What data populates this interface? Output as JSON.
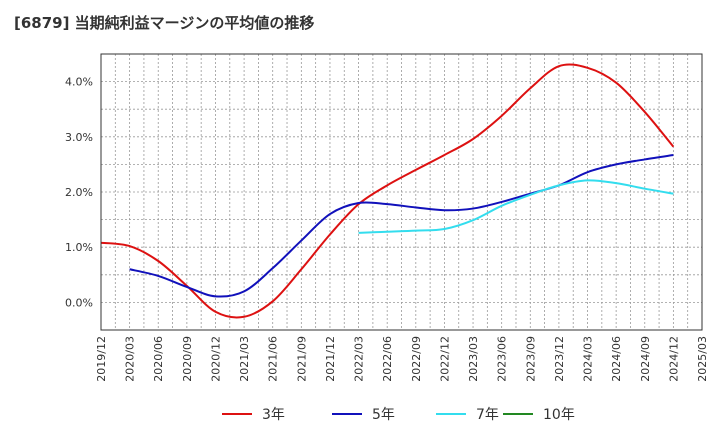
{
  "chart_data": {
    "type": "line",
    "title": "[6879]  当期純利益マージンの平均値の推移",
    "x_categories": [
      "2019/12",
      "2020/03",
      "2020/06",
      "2020/09",
      "2020/12",
      "2021/03",
      "2021/06",
      "2021/09",
      "2021/12",
      "2022/03",
      "2022/06",
      "2022/09",
      "2022/12",
      "2023/03",
      "2023/06",
      "2023/09",
      "2023/12",
      "2024/03",
      "2024/06",
      "2024/09",
      "2024/12",
      "2025/03"
    ],
    "y_ticks": [
      "0.0%",
      "1.0%",
      "2.0%",
      "3.0%",
      "4.0%"
    ],
    "ylim": [
      -0.5,
      4.5
    ],
    "grid": true,
    "legend_position": "bottom",
    "series": [
      {
        "name": "3年",
        "color": "#dd1111",
        "x": [
          "2019/12",
          "2020/03",
          "2020/06",
          "2020/09",
          "2020/12",
          "2021/03",
          "2021/06",
          "2021/09",
          "2021/12",
          "2022/03",
          "2022/06",
          "2022/09",
          "2022/12",
          "2023/03",
          "2023/06",
          "2023/09",
          "2023/12",
          "2024/03",
          "2024/06",
          "2024/09",
          "2024/12"
        ],
        "values": [
          1.08,
          1.02,
          0.75,
          0.3,
          -0.17,
          -0.26,
          0.02,
          0.6,
          1.23,
          1.78,
          2.12,
          2.4,
          2.67,
          2.96,
          3.38,
          3.88,
          4.28,
          4.25,
          3.98,
          3.45,
          2.82
        ]
      },
      {
        "name": "5年",
        "color": "#1111bb",
        "x": [
          "2020/03",
          "2020/06",
          "2020/09",
          "2020/12",
          "2021/03",
          "2021/06",
          "2021/09",
          "2021/12",
          "2022/03",
          "2022/06",
          "2022/09",
          "2022/12",
          "2023/03",
          "2023/06",
          "2023/09",
          "2023/12",
          "2024/03",
          "2024/06",
          "2024/09",
          "2024/12"
        ],
        "values": [
          0.6,
          0.48,
          0.28,
          0.11,
          0.2,
          0.62,
          1.12,
          1.6,
          1.8,
          1.78,
          1.72,
          1.67,
          1.7,
          1.82,
          1.97,
          2.12,
          2.36,
          2.5,
          2.59,
          2.67
        ]
      },
      {
        "name": "7年",
        "color": "#33ddee",
        "x": [
          "2022/03",
          "2022/06",
          "2022/09",
          "2022/12",
          "2023/03",
          "2023/06",
          "2023/09",
          "2023/12",
          "2024/03",
          "2024/06",
          "2024/09",
          "2024/12"
        ],
        "values": [
          1.26,
          1.28,
          1.3,
          1.33,
          1.49,
          1.75,
          1.95,
          2.12,
          2.21,
          2.16,
          2.06,
          1.97
        ]
      },
      {
        "name": "10年",
        "color": "#228822",
        "x": [],
        "values": []
      }
    ]
  }
}
